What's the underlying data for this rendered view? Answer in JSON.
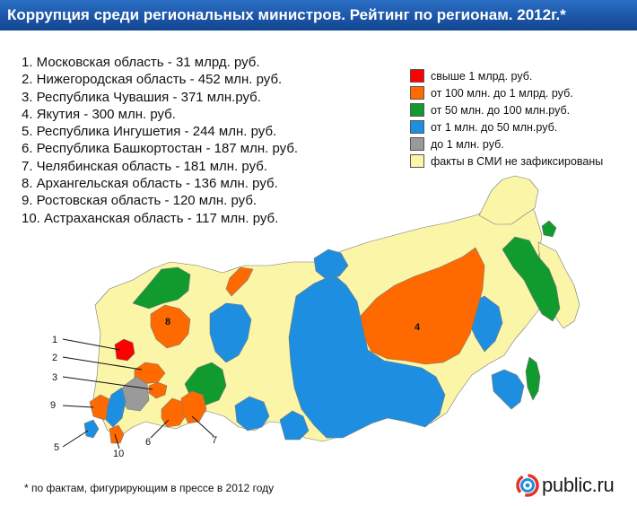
{
  "header": {
    "title": "Коррупция среди региональных министров. Рейтинг по регионам. 2012г.*"
  },
  "ranking": [
    "1. Московская область - 31 млрд. руб.",
    "2. Нижегородская область - 452 млн. руб.",
    "3. Республика Чувашия - 371 млн.руб.",
    "4. Якутия - 300 млн. руб.",
    "5. Республика Ингушетия - 244 млн. руб.",
    "6. Республика Башкортостан - 187 млн. руб.",
    "7. Челябинская область - 181 млн. руб.",
    "8. Архангельская область - 136 млн. руб.",
    "9. Ростовская область - 120 млн. руб.",
    "10. Астраханская область - 117 млн. руб."
  ],
  "legend": [
    {
      "label": "свыше 1 млрд. руб.",
      "color": "#ff0000"
    },
    {
      "label": "от 100 млн. до 1 млрд. руб.",
      "color": "#ff6a00"
    },
    {
      "label": "от 50 млн. до 100 млн.руб.",
      "color": "#119b2f"
    },
    {
      "label": "от 1 млн. до 50 млн.руб.",
      "color": "#1e8fe0"
    },
    {
      "label": "до 1 млн. руб.",
      "color": "#9a9a9a"
    },
    {
      "label": "факты в СМИ не зафиксированы",
      "color": "#fbf5a8"
    }
  ],
  "map": {
    "labels": {
      "arkhangelsk": "8",
      "yakutia": "4"
    },
    "callouts": [
      "1",
      "2",
      "3",
      "9",
      "5",
      "10",
      "6",
      "7"
    ]
  },
  "footnote": "* по фактам, фигурирующим в прессе в 2012 году",
  "brand": {
    "name": "public.ru"
  }
}
